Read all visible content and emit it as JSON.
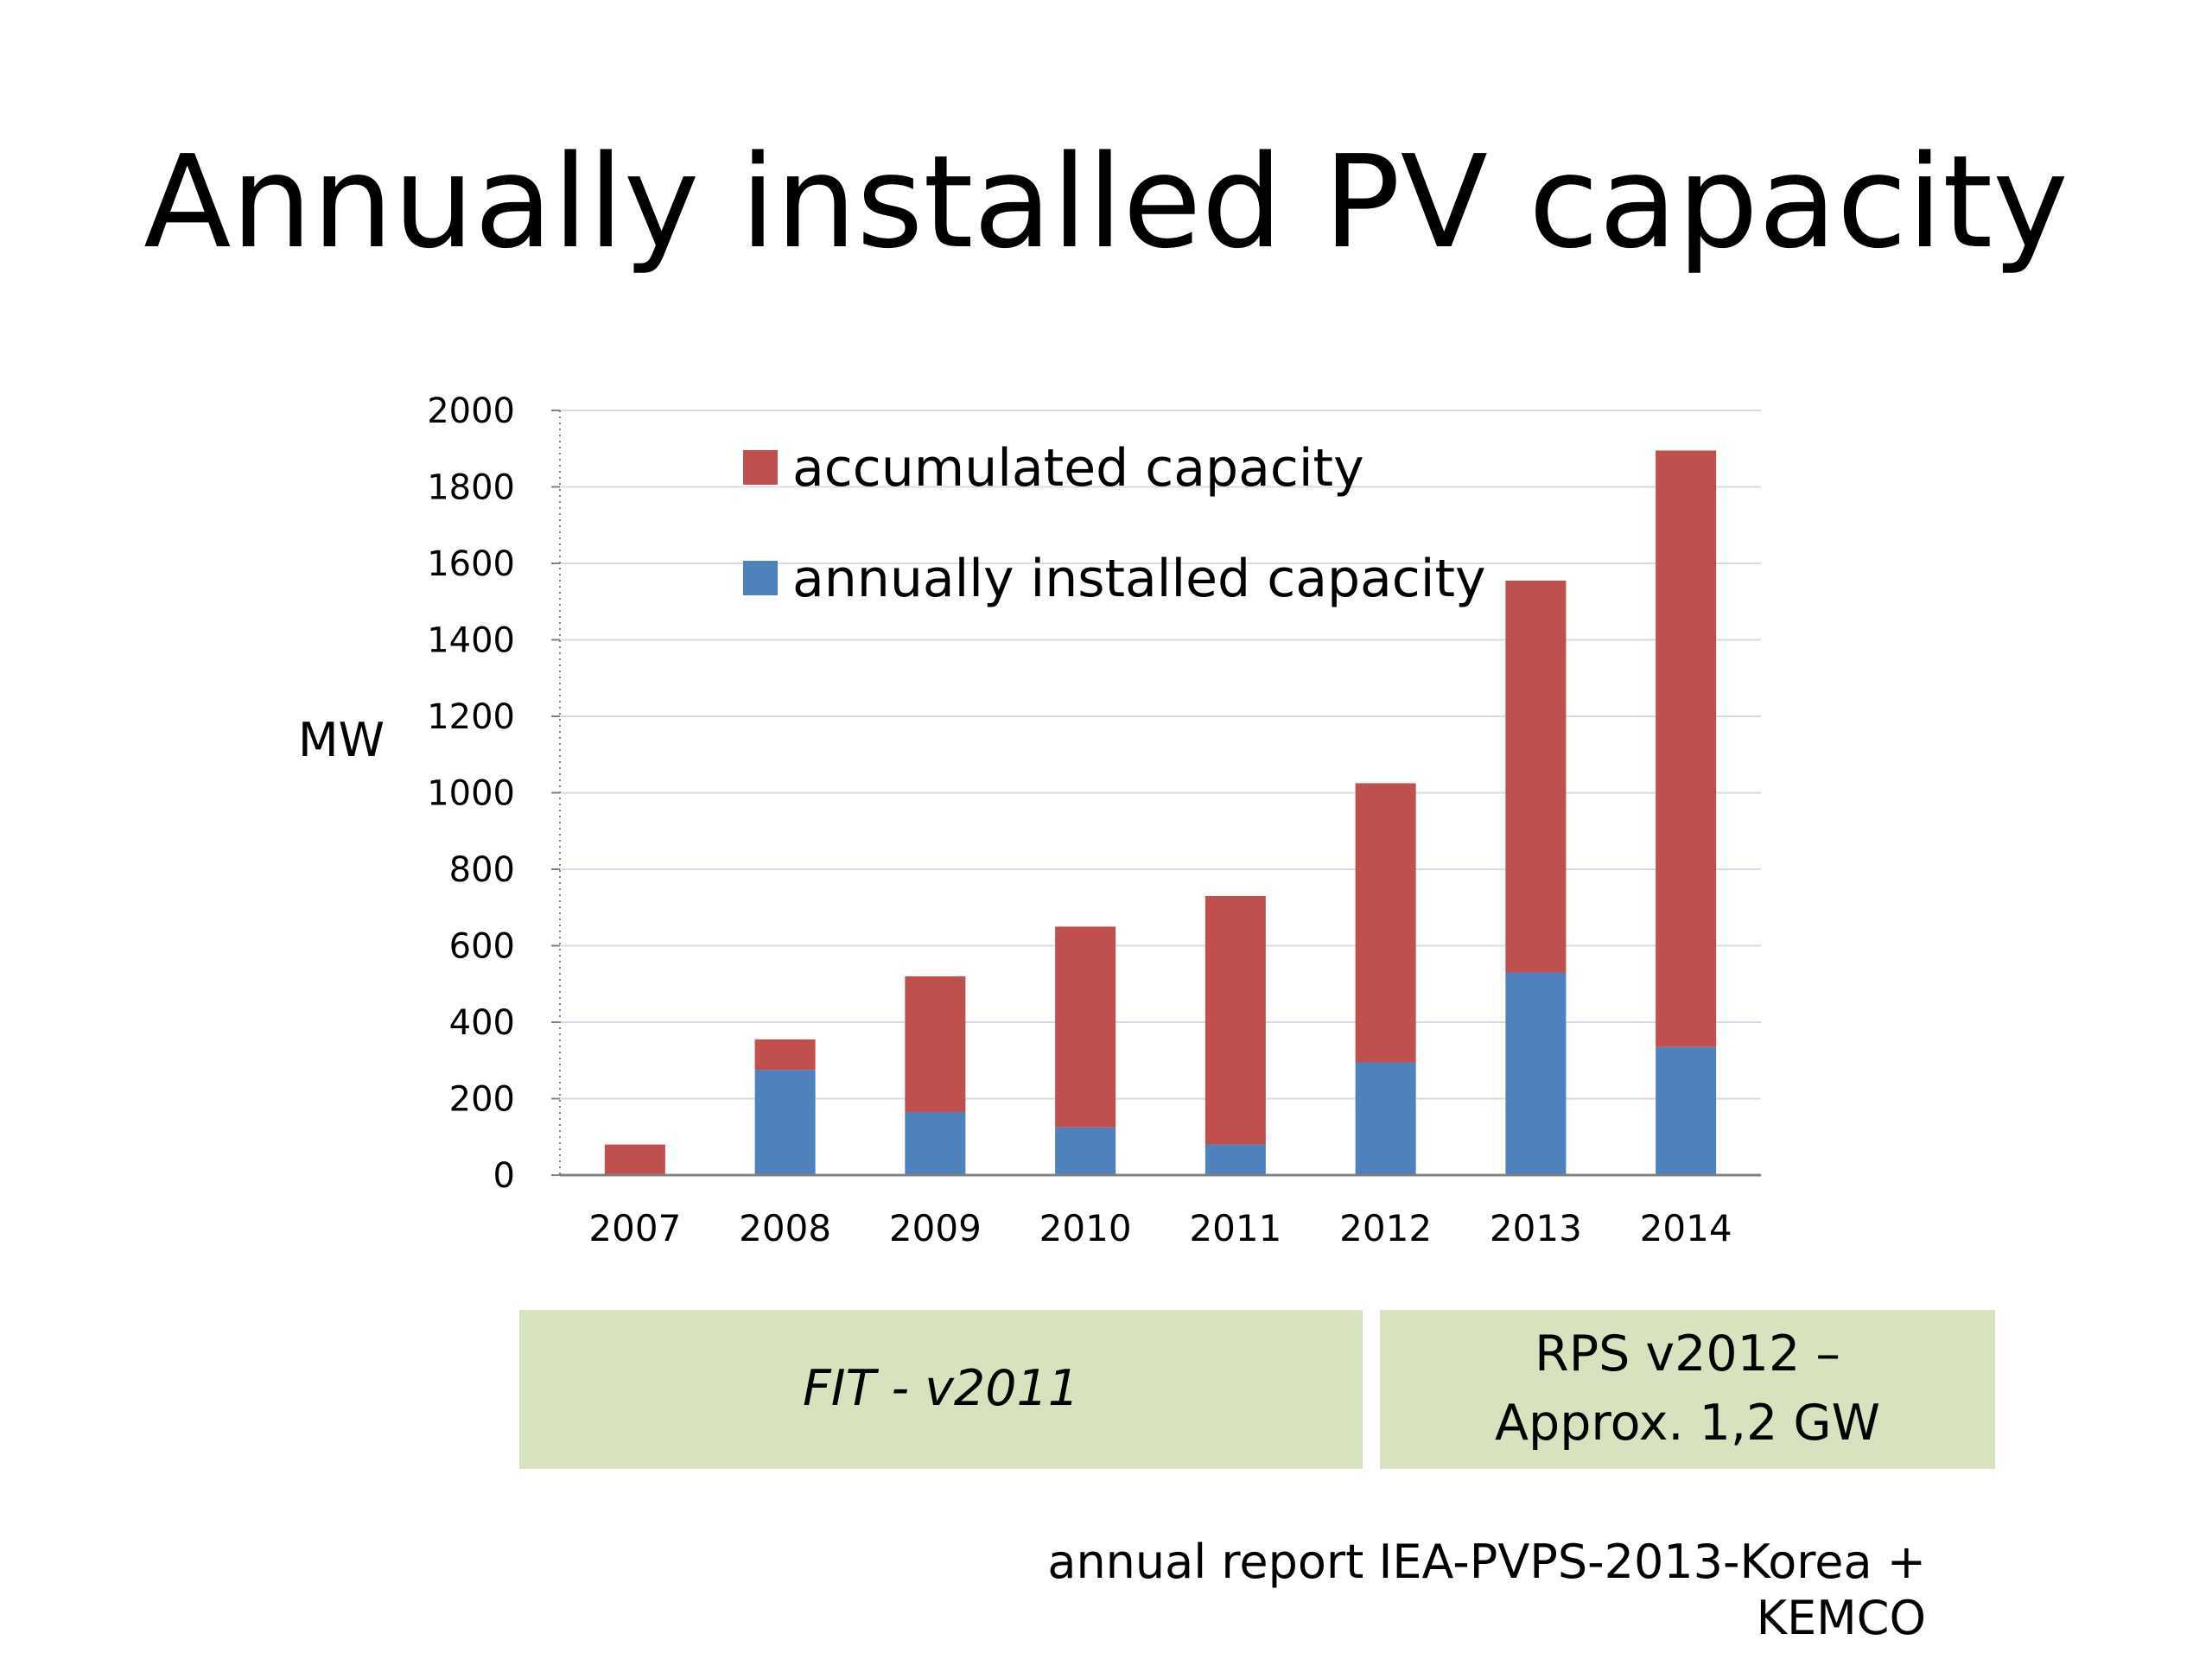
{
  "slide": {
    "title": "Annually installed PV capacity",
    "source": "annual report IEA-PVPS-2013-Korea + KEMCO"
  },
  "policies": {
    "fit": {
      "label": "FIT  - v2011"
    },
    "rps": {
      "line1": "RPS  v2012 –",
      "line2": "Approx. 1,2 GW"
    }
  },
  "colors": {
    "accumulated": "#c0504d",
    "annual": "#4f81bd",
    "policy_box": "#d7e3bf",
    "gridline": "#d9d9e8"
  },
  "chart_data": {
    "type": "bar",
    "stacked": true,
    "categories": [
      "2007",
      "2008",
      "2009",
      "2010",
      "2011",
      "2012",
      "2013",
      "2014"
    ],
    "series": [
      {
        "name": "annually installed capacity",
        "color": "#4f81bd",
        "values": [
          0,
          275,
          165,
          125,
          80,
          295,
          530,
          335
        ]
      },
      {
        "name": "accumulated capacity",
        "color": "#c0504d",
        "values": [
          80,
          80,
          355,
          525,
          650,
          730,
          1025,
          1560
        ]
      }
    ],
    "ylabel": "MW",
    "ylim": [
      0,
      2000
    ],
    "yticks": [
      0,
      200,
      400,
      600,
      800,
      1000,
      1200,
      1400,
      1600,
      1800,
      2000
    ],
    "grid": true,
    "legend_position": "top-left"
  }
}
